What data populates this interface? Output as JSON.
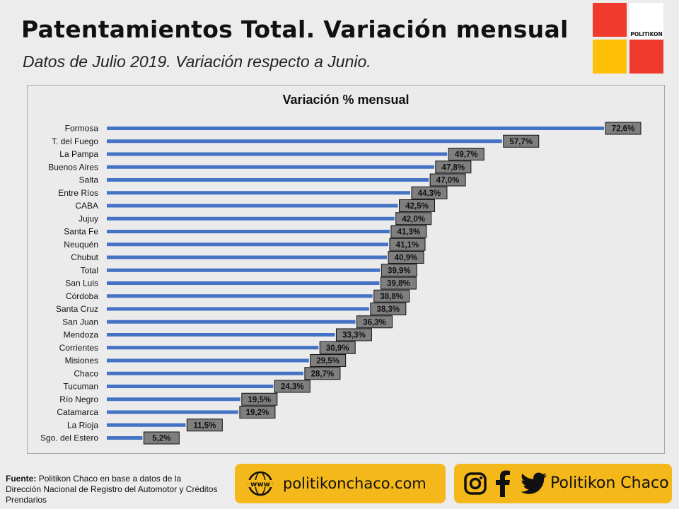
{
  "header": {
    "title": "Patentamientos Total. Variación mensual",
    "subtitle": "Datos de Julio 2019. Variación respecto a Junio."
  },
  "logo": {
    "text": "POLITIKON"
  },
  "colors": {
    "bar": "#4472c4",
    "label_bg": "#7f7f7f",
    "accent_yellow": "#f5b81a",
    "accent_red": "#f03a2e"
  },
  "chart_data": {
    "type": "bar",
    "orientation": "horizontal",
    "title": "Variación % mensual",
    "categories": [
      "Formosa",
      "T. del Fuego",
      "La Pampa",
      "Buenos Aires",
      "Salta",
      "Entre Ríos",
      "CABA",
      "Jujuy",
      "Santa Fe",
      "Neuquén",
      "Chubut",
      "Total",
      "San Luis",
      "Córdoba",
      "Santa  Cruz",
      "San Juan",
      "Mendoza",
      "Corrientes",
      "Misiones",
      "Chaco",
      "Tucuman",
      "Río Negro",
      "Catamarca",
      "La Rioja",
      "Sgo. del Estero"
    ],
    "values": [
      72.6,
      57.7,
      49.7,
      47.8,
      47.0,
      44.3,
      42.5,
      42.0,
      41.3,
      41.1,
      40.9,
      39.9,
      39.8,
      38.8,
      38.3,
      36.3,
      33.3,
      30.9,
      29.5,
      28.7,
      24.3,
      19.5,
      19.2,
      11.5,
      5.2
    ],
    "value_labels": [
      "72,6%",
      "57,7%",
      "49,7%",
      "47,8%",
      "47,0%",
      "44,3%",
      "42,5%",
      "42,0%",
      "41,3%",
      "41,1%",
      "40,9%",
      "39,9%",
      "39,8%",
      "38,8%",
      "38,3%",
      "36,3%",
      "33,3%",
      "30,9%",
      "29,5%",
      "28,7%",
      "24,3%",
      "19,5%",
      "19,2%",
      "11,5%",
      "5,2%"
    ],
    "xlim": [
      0,
      72.6
    ],
    "grid": false,
    "legend": false
  },
  "footer": {
    "source_label": "Fuente:",
    "source_text": "Politikon Chaco en base a datos de la Dirección Nacional de Registro del Automotor y Créditos Prendarios",
    "website": "politikonchaco.com",
    "social_handle": "Politikon Chaco",
    "icons": [
      "www-globe-icon",
      "instagram-icon",
      "facebook-icon",
      "twitter-icon"
    ]
  }
}
